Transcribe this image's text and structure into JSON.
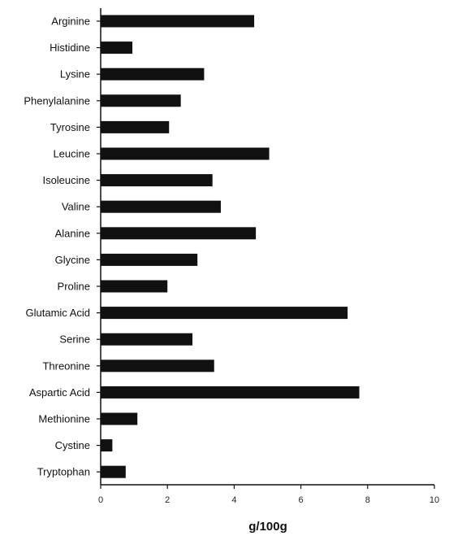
{
  "chart_data": {
    "type": "bar",
    "orientation": "horizontal",
    "categories": [
      "Arginine",
      "Histidine",
      "Lysine",
      "Phenylalanine",
      "Tyrosine",
      "Leucine",
      "Isoleucine",
      "Valine",
      "Alanine",
      "Glycine",
      "Proline",
      "Glutamic Acid",
      "Serine",
      "Threonine",
      "Aspartic Acid",
      "Methionine",
      "Cystine",
      "Tryptophan"
    ],
    "values": [
      4.6,
      0.95,
      3.1,
      2.4,
      2.05,
      5.05,
      3.35,
      3.6,
      4.65,
      2.9,
      2.0,
      7.4,
      2.75,
      3.4,
      7.75,
      1.1,
      0.35,
      0.75
    ],
    "title": "",
    "xlabel": "g/100g",
    "ylabel": "",
    "xlim": [
      0,
      10
    ],
    "xticks": [
      0,
      2,
      4,
      6,
      8,
      10
    ],
    "xtick_labels": [
      "0",
      "2",
      "4",
      "6",
      "8",
      "10"
    ],
    "grid": false,
    "legend": "none",
    "bar_color": "#111111"
  }
}
